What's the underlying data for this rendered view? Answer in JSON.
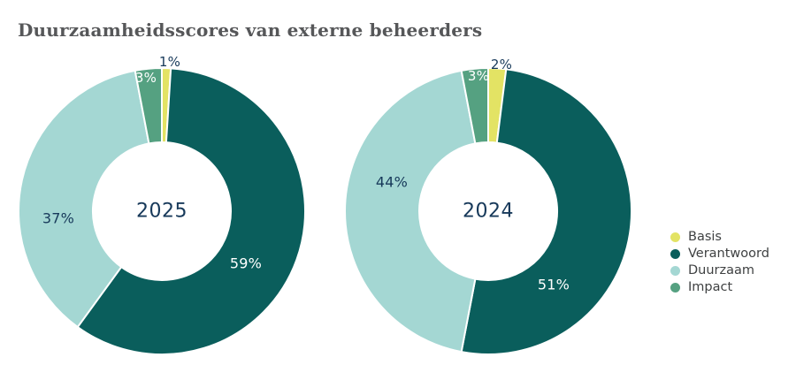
{
  "title": "Duurzaamheidsscores van externe beheerders",
  "legend": {
    "position": "right",
    "items": [
      {
        "label": "Basis",
        "color": "#e3e364"
      },
      {
        "label": "Verantwoord",
        "color": "#0a5e5c"
      },
      {
        "label": "Duurzaam",
        "color": "#a4d7d3"
      },
      {
        "label": "Impact",
        "color": "#55a181"
      }
    ]
  },
  "chart_data": [
    {
      "type": "pie",
      "subtype": "donut",
      "center_label": "2025",
      "categories": [
        "Basis",
        "Verantwoord",
        "Duurzaam",
        "Impact"
      ],
      "values": [
        1,
        59,
        37,
        3
      ],
      "unit": "%",
      "data_labels": [
        "1%",
        "59%",
        "37%",
        "3%"
      ],
      "colors": [
        "#e3e364",
        "#0a5e5c",
        "#a4d7d3",
        "#55a181"
      ],
      "start_angle_deg": 0,
      "direction": "clockwise",
      "inner_radius_ratio": 0.48,
      "segment_gap": "white"
    },
    {
      "type": "pie",
      "subtype": "donut",
      "center_label": "2024",
      "categories": [
        "Basis",
        "Verantwoord",
        "Duurzaam",
        "Impact"
      ],
      "values": [
        2,
        51,
        44,
        3
      ],
      "unit": "%",
      "data_labels": [
        "2%",
        "51%",
        "44%",
        "3%"
      ],
      "colors": [
        "#e3e364",
        "#0a5e5c",
        "#a4d7d3",
        "#55a181"
      ],
      "start_angle_deg": 0,
      "direction": "clockwise",
      "inner_radius_ratio": 0.48,
      "segment_gap": "white"
    }
  ],
  "theme": {
    "background": "#ffffff",
    "title_color": "#565759",
    "label_dark": "#17395a",
    "label_light": "#ffffff",
    "legend_text_color": "#3f4142"
  }
}
